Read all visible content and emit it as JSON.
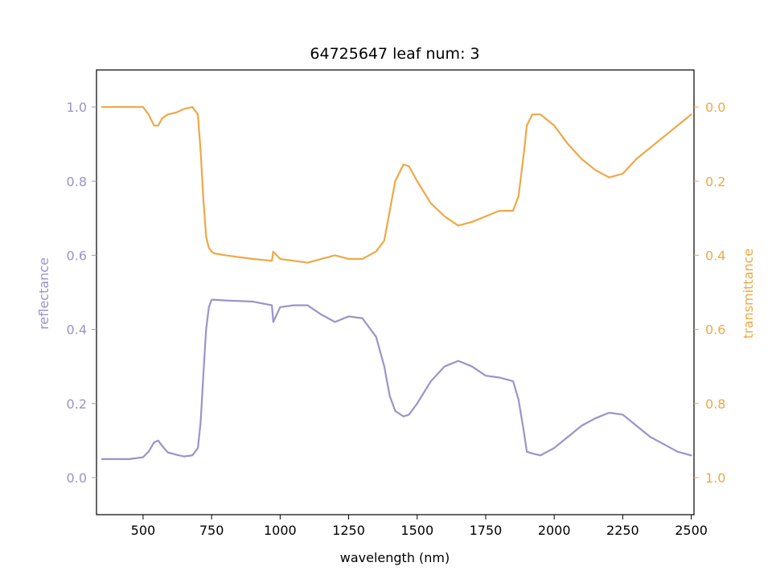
{
  "chart_data": {
    "type": "line",
    "title": "64725647 leaf num: 3",
    "xlabel": "wavelength (nm)",
    "ylabel_left": "reflectance",
    "ylabel_right": "transmittance",
    "xlim": [
      330,
      2510
    ],
    "ylim_left": [
      -0.1,
      1.1
    ],
    "ylim_right": [
      1.1,
      -0.1
    ],
    "right_axis_inverted": true,
    "grid": false,
    "x_ticks": [
      500,
      750,
      1000,
      1250,
      1500,
      1750,
      2000,
      2250,
      2500
    ],
    "y_ticks_left": [
      0.0,
      0.2,
      0.4,
      0.6,
      0.8,
      1.0
    ],
    "y_ticks_right": [
      0.0,
      0.2,
      0.4,
      0.6,
      0.8,
      1.0
    ],
    "colors": {
      "reflectance": "#9a94c8",
      "transmittance": "#eea847"
    },
    "series": [
      {
        "name": "reflectance",
        "axis": "left",
        "x": [
          350,
          400,
          450,
          500,
          520,
          540,
          555,
          570,
          590,
          620,
          650,
          680,
          700,
          710,
          720,
          730,
          740,
          750,
          760,
          800,
          900,
          970,
          975,
          1000,
          1050,
          1100,
          1150,
          1200,
          1250,
          1300,
          1350,
          1380,
          1400,
          1420,
          1450,
          1470,
          1500,
          1550,
          1600,
          1650,
          1700,
          1750,
          1800,
          1850,
          1870,
          1890,
          1900,
          1920,
          1950,
          2000,
          2050,
          2100,
          2150,
          2200,
          2250,
          2300,
          2350,
          2400,
          2450,
          2500
        ],
        "y": [
          0.05,
          0.05,
          0.05,
          0.055,
          0.07,
          0.095,
          0.1,
          0.085,
          0.068,
          0.062,
          0.057,
          0.06,
          0.08,
          0.15,
          0.28,
          0.4,
          0.46,
          0.48,
          0.48,
          0.478,
          0.475,
          0.465,
          0.42,
          0.46,
          0.465,
          0.465,
          0.44,
          0.42,
          0.435,
          0.43,
          0.38,
          0.3,
          0.22,
          0.18,
          0.165,
          0.17,
          0.2,
          0.26,
          0.3,
          0.315,
          0.3,
          0.275,
          0.27,
          0.26,
          0.21,
          0.12,
          0.07,
          0.065,
          0.06,
          0.08,
          0.11,
          0.14,
          0.16,
          0.175,
          0.17,
          0.14,
          0.11,
          0.09,
          0.07,
          0.06
        ]
      },
      {
        "name": "transmittance",
        "axis": "right",
        "x": [
          350,
          400,
          450,
          500,
          520,
          540,
          555,
          570,
          590,
          620,
          650,
          680,
          700,
          710,
          720,
          730,
          740,
          750,
          760,
          800,
          900,
          970,
          975,
          1000,
          1050,
          1100,
          1150,
          1200,
          1250,
          1300,
          1350,
          1380,
          1400,
          1420,
          1450,
          1470,
          1500,
          1550,
          1600,
          1650,
          1700,
          1750,
          1800,
          1850,
          1870,
          1890,
          1900,
          1920,
          1950,
          2000,
          2050,
          2100,
          2150,
          2200,
          2250,
          2300,
          2350,
          2400,
          2450,
          2500
        ],
        "y": [
          0.0,
          0.0,
          0.0,
          0.0,
          0.02,
          0.05,
          0.05,
          0.03,
          0.02,
          0.015,
          0.005,
          0.0,
          0.02,
          0.12,
          0.25,
          0.35,
          0.38,
          0.39,
          0.395,
          0.4,
          0.41,
          0.415,
          0.39,
          0.41,
          0.415,
          0.42,
          0.41,
          0.4,
          0.41,
          0.41,
          0.39,
          0.36,
          0.28,
          0.2,
          0.155,
          0.16,
          0.2,
          0.26,
          0.295,
          0.32,
          0.31,
          0.295,
          0.28,
          0.28,
          0.24,
          0.12,
          0.05,
          0.02,
          0.02,
          0.05,
          0.1,
          0.14,
          0.17,
          0.19,
          0.18,
          0.14,
          0.11,
          0.08,
          0.05,
          0.02
        ]
      }
    ]
  }
}
